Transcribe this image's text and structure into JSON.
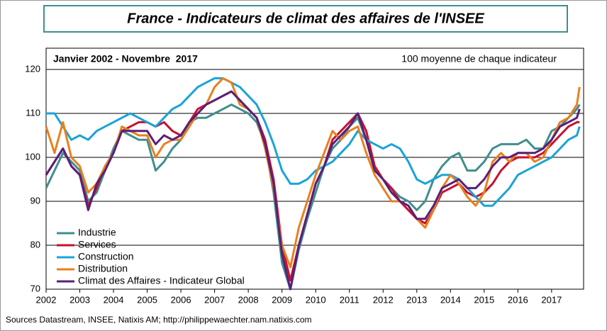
{
  "chart_data": {
    "type": "line",
    "title": "France - Indicateurs de climat des affaires de l'INSEE",
    "subtitle": "Janvier 2002 - Novembre  2017",
    "note": "100 moyenne de chaque indicateur",
    "source": "Sources Datastream, INSEE, Natixis AM; http://philippewaechter.nam.natixis.com",
    "x": [
      2002,
      2002.25,
      2002.5,
      2002.75,
      2003,
      2003.25,
      2003.5,
      2003.75,
      2004,
      2004.25,
      2004.5,
      2004.75,
      2005,
      2005.25,
      2005.5,
      2005.75,
      2006,
      2006.25,
      2006.5,
      2006.75,
      2007,
      2007.25,
      2007.5,
      2007.75,
      2008,
      2008.25,
      2008.5,
      2008.75,
      2009,
      2009.25,
      2009.5,
      2009.75,
      2010,
      2010.25,
      2010.5,
      2010.75,
      2011,
      2011.25,
      2011.5,
      2011.75,
      2012,
      2012.25,
      2012.5,
      2012.75,
      2013,
      2013.25,
      2013.5,
      2013.75,
      2014,
      2014.25,
      2014.5,
      2014.75,
      2015,
      2015.25,
      2015.5,
      2015.75,
      2016,
      2016.25,
      2016.5,
      2016.75,
      2017,
      2017.25,
      2017.5,
      2017.75,
      2017.83
    ],
    "xlim": [
      2002,
      2017.95
    ],
    "xticks": [
      2002,
      2003,
      2004,
      2005,
      2006,
      2007,
      2008,
      2009,
      2010,
      2011,
      2012,
      2013,
      2014,
      2015,
      2016,
      2017
    ],
    "ylim": [
      70,
      120
    ],
    "yticks": [
      70,
      80,
      90,
      100,
      110,
      120
    ],
    "grid": true,
    "legend": "lower left",
    "series": [
      {
        "name": "Industrie",
        "color": "#3f8f8c",
        "values": [
          93,
          97,
          101,
          99,
          97,
          90,
          92,
          97,
          102,
          106,
          105,
          104,
          104,
          97,
          99,
          102,
          104,
          108,
          109,
          109,
          110,
          111,
          112,
          111,
          110,
          108,
          103,
          92,
          76,
          70,
          79,
          86,
          92,
          98,
          102,
          104,
          107,
          109,
          104,
          97,
          95,
          93,
          91,
          90,
          88,
          90,
          95,
          98,
          100,
          101,
          97,
          97,
          99,
          102,
          103,
          103,
          103,
          104,
          102,
          102,
          106,
          107,
          109,
          111,
          112
        ]
      },
      {
        "name": "Services",
        "color": "#c8102e",
        "values": [
          96,
          99,
          102,
          98,
          96,
          89,
          93,
          98,
          101,
          106,
          107,
          108,
          108,
          107,
          108,
          106,
          105,
          108,
          111,
          112,
          113,
          114,
          115,
          113,
          111,
          109,
          104,
          95,
          80,
          72,
          80,
          87,
          94,
          98,
          104,
          106,
          108,
          110,
          106,
          98,
          95,
          93,
          90,
          88,
          86,
          85,
          88,
          92,
          93,
          94,
          92,
          91,
          92,
          94,
          97,
          99,
          100,
          100,
          100,
          101,
          103,
          105,
          107,
          108,
          108
        ]
      },
      {
        "name": "Construction",
        "color": "#1aa3d9",
        "values": [
          110,
          110,
          107,
          104,
          105,
          104,
          106,
          107,
          108,
          109,
          110,
          109,
          108,
          107,
          109,
          111,
          112,
          114,
          116,
          117,
          118,
          118,
          117,
          116,
          114,
          112,
          108,
          103,
          97,
          94,
          94,
          95,
          97,
          98,
          99,
          101,
          103,
          106,
          104,
          103,
          102,
          103,
          102,
          99,
          95,
          94,
          95,
          96,
          96,
          95,
          93,
          91,
          89,
          89,
          91,
          93,
          96,
          97,
          98,
          99,
          100,
          102,
          104,
          105,
          107
        ]
      },
      {
        "name": "Distribution",
        "color": "#e8801e",
        "values": [
          107,
          101,
          108,
          100,
          98,
          92,
          94,
          98,
          101,
          107,
          106,
          105,
          105,
          100,
          103,
          104,
          104,
          107,
          110,
          112,
          116,
          118,
          117,
          112,
          111,
          109,
          102,
          93,
          80,
          75,
          84,
          90,
          96,
          101,
          106,
          104,
          106,
          107,
          101,
          96,
          93,
          90,
          90,
          89,
          86,
          84,
          88,
          93,
          96,
          94,
          91,
          89,
          92,
          99,
          101,
          99,
          101,
          101,
          99,
          100,
          104,
          108,
          109,
          112,
          116
        ]
      },
      {
        "name": "Climat des Affaires - Indicateur Global",
        "color": "#5a1f7a",
        "values": [
          96,
          99,
          102,
          98,
          96,
          88,
          94,
          97,
          101,
          106,
          106,
          106,
          106,
          103,
          105,
          104,
          105,
          108,
          110,
          112,
          113,
          114,
          115,
          113,
          111,
          109,
          103,
          94,
          78,
          70,
          80,
          87,
          94,
          98,
          103,
          105,
          107,
          110,
          104,
          97,
          95,
          92,
          90,
          89,
          86,
          86,
          89,
          93,
          94,
          95,
          93,
          93,
          95,
          98,
          100,
          100,
          101,
          101,
          101,
          102,
          104,
          107,
          108,
          109,
          111
        ]
      }
    ]
  }
}
